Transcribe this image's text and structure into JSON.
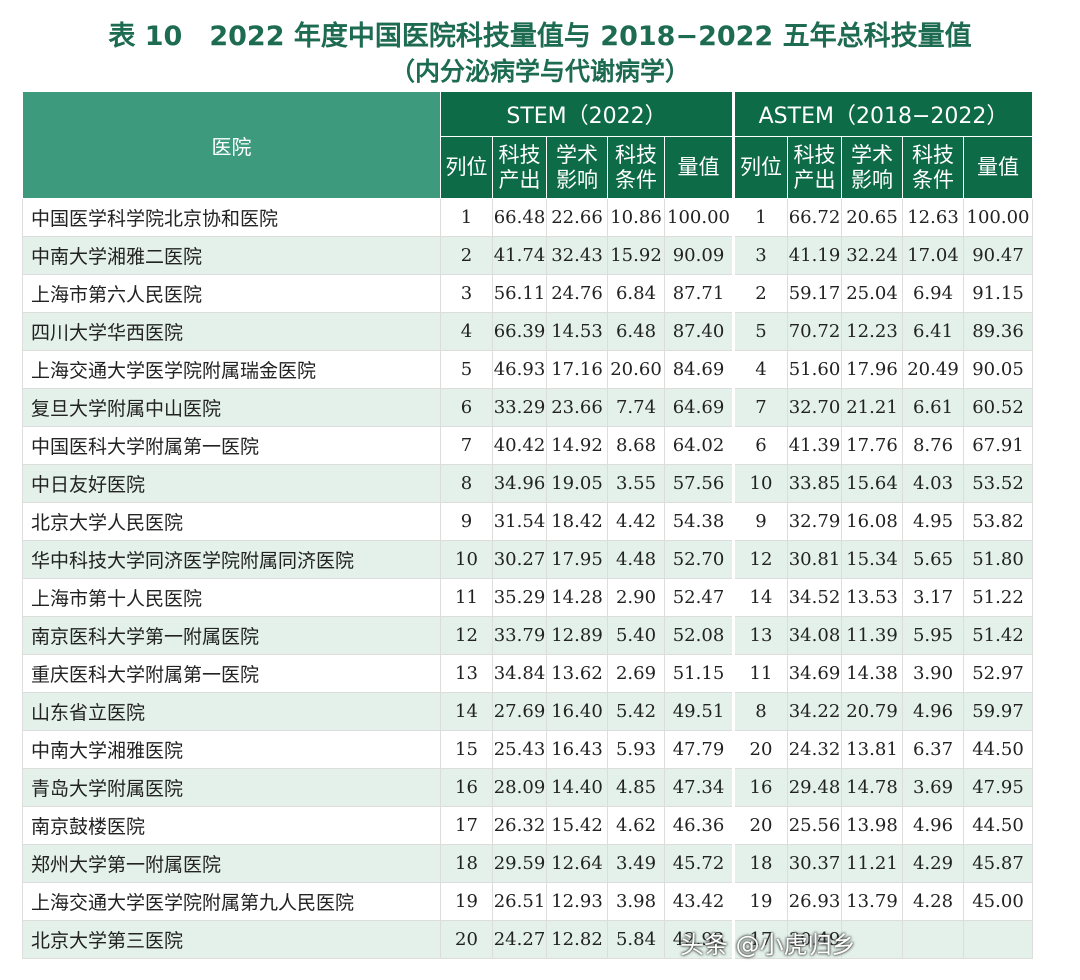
{
  "title_line1": "表 10　2022 年度中国医院科技量值与 2018−2022 五年总科技量值",
  "title_line2": "（内分泌病学与代谢病学）",
  "header": {
    "hospital": "医院",
    "group1": "STEM（2022）",
    "group2": "ASTEM（2018−2022）",
    "cols": [
      "列位",
      "科技\n产出",
      "学术\n影响",
      "科技\n条件",
      "量值"
    ]
  },
  "rows": [
    {
      "name": "中国医学科学院北京协和医院",
      "s": [
        "1",
        "66.48",
        "22.66",
        "10.86",
        "100.00"
      ],
      "a": [
        "1",
        "66.72",
        "20.65",
        "12.63",
        "100.00"
      ]
    },
    {
      "name": "中南大学湘雅二医院",
      "s": [
        "2",
        "41.74",
        "32.43",
        "15.92",
        "90.09"
      ],
      "a": [
        "3",
        "41.19",
        "32.24",
        "17.04",
        "90.47"
      ]
    },
    {
      "name": "上海市第六人民医院",
      "s": [
        "3",
        "56.11",
        "24.76",
        "6.84",
        "87.71"
      ],
      "a": [
        "2",
        "59.17",
        "25.04",
        "6.94",
        "91.15"
      ]
    },
    {
      "name": "四川大学华西医院",
      "s": [
        "4",
        "66.39",
        "14.53",
        "6.48",
        "87.40"
      ],
      "a": [
        "5",
        "70.72",
        "12.23",
        "6.41",
        "89.36"
      ]
    },
    {
      "name": "上海交通大学医学院附属瑞金医院",
      "s": [
        "5",
        "46.93",
        "17.16",
        "20.60",
        "84.69"
      ],
      "a": [
        "4",
        "51.60",
        "17.96",
        "20.49",
        "90.05"
      ]
    },
    {
      "name": "复旦大学附属中山医院",
      "s": [
        "6",
        "33.29",
        "23.66",
        "7.74",
        "64.69"
      ],
      "a": [
        "7",
        "32.70",
        "21.21",
        "6.61",
        "60.52"
      ]
    },
    {
      "name": "中国医科大学附属第一医院",
      "s": [
        "7",
        "40.42",
        "14.92",
        "8.68",
        "64.02"
      ],
      "a": [
        "6",
        "41.39",
        "17.76",
        "8.76",
        "67.91"
      ]
    },
    {
      "name": "中日友好医院",
      "s": [
        "8",
        "34.96",
        "19.05",
        "3.55",
        "57.56"
      ],
      "a": [
        "10",
        "33.85",
        "15.64",
        "4.03",
        "53.52"
      ]
    },
    {
      "name": "北京大学人民医院",
      "s": [
        "9",
        "31.54",
        "18.42",
        "4.42",
        "54.38"
      ],
      "a": [
        "9",
        "32.79",
        "16.08",
        "4.95",
        "53.82"
      ]
    },
    {
      "name": "华中科技大学同济医学院附属同济医院",
      "s": [
        "10",
        "30.27",
        "17.95",
        "4.48",
        "52.70"
      ],
      "a": [
        "12",
        "30.81",
        "15.34",
        "5.65",
        "51.80"
      ]
    },
    {
      "name": "上海市第十人民医院",
      "s": [
        "11",
        "35.29",
        "14.28",
        "2.90",
        "52.47"
      ],
      "a": [
        "14",
        "34.52",
        "13.53",
        "3.17",
        "51.22"
      ]
    },
    {
      "name": "南京医科大学第一附属医院",
      "s": [
        "12",
        "33.79",
        "12.89",
        "5.40",
        "52.08"
      ],
      "a": [
        "13",
        "34.08",
        "11.39",
        "5.95",
        "51.42"
      ]
    },
    {
      "name": "重庆医科大学附属第一医院",
      "s": [
        "13",
        "34.84",
        "13.62",
        "2.69",
        "51.15"
      ],
      "a": [
        "11",
        "34.69",
        "14.38",
        "3.90",
        "52.97"
      ]
    },
    {
      "name": "山东省立医院",
      "s": [
        "14",
        "27.69",
        "16.40",
        "5.42",
        "49.51"
      ],
      "a": [
        "8",
        "34.22",
        "20.79",
        "4.96",
        "59.97"
      ]
    },
    {
      "name": "中南大学湘雅医院",
      "s": [
        "15",
        "25.43",
        "16.43",
        "5.93",
        "47.79"
      ],
      "a": [
        "20",
        "24.32",
        "13.81",
        "6.37",
        "44.50"
      ]
    },
    {
      "name": "青岛大学附属医院",
      "s": [
        "16",
        "28.09",
        "14.40",
        "4.85",
        "47.34"
      ],
      "a": [
        "16",
        "29.48",
        "14.78",
        "3.69",
        "47.95"
      ]
    },
    {
      "name": "南京鼓楼医院",
      "s": [
        "17",
        "26.32",
        "15.42",
        "4.62",
        "46.36"
      ],
      "a": [
        "20",
        "25.56",
        "13.98",
        "4.96",
        "44.50"
      ]
    },
    {
      "name": "郑州大学第一附属医院",
      "s": [
        "18",
        "29.59",
        "12.64",
        "3.49",
        "45.72"
      ],
      "a": [
        "18",
        "30.37",
        "11.21",
        "4.29",
        "45.87"
      ]
    },
    {
      "name": "上海交通大学医学院附属第九人民医院",
      "s": [
        "19",
        "26.51",
        "12.93",
        "3.98",
        "43.42"
      ],
      "a": [
        "19",
        "26.93",
        "13.79",
        "4.28",
        "45.00"
      ]
    },
    {
      "name": "北京大学第三医院",
      "s": [
        "20",
        "24.27",
        "12.82",
        "5.84",
        "42.93"
      ],
      "a": [
        "17",
        "30.49",
        "",
        "",
        ""
      ]
    }
  ],
  "watermark": "头条 @小虎归乡"
}
